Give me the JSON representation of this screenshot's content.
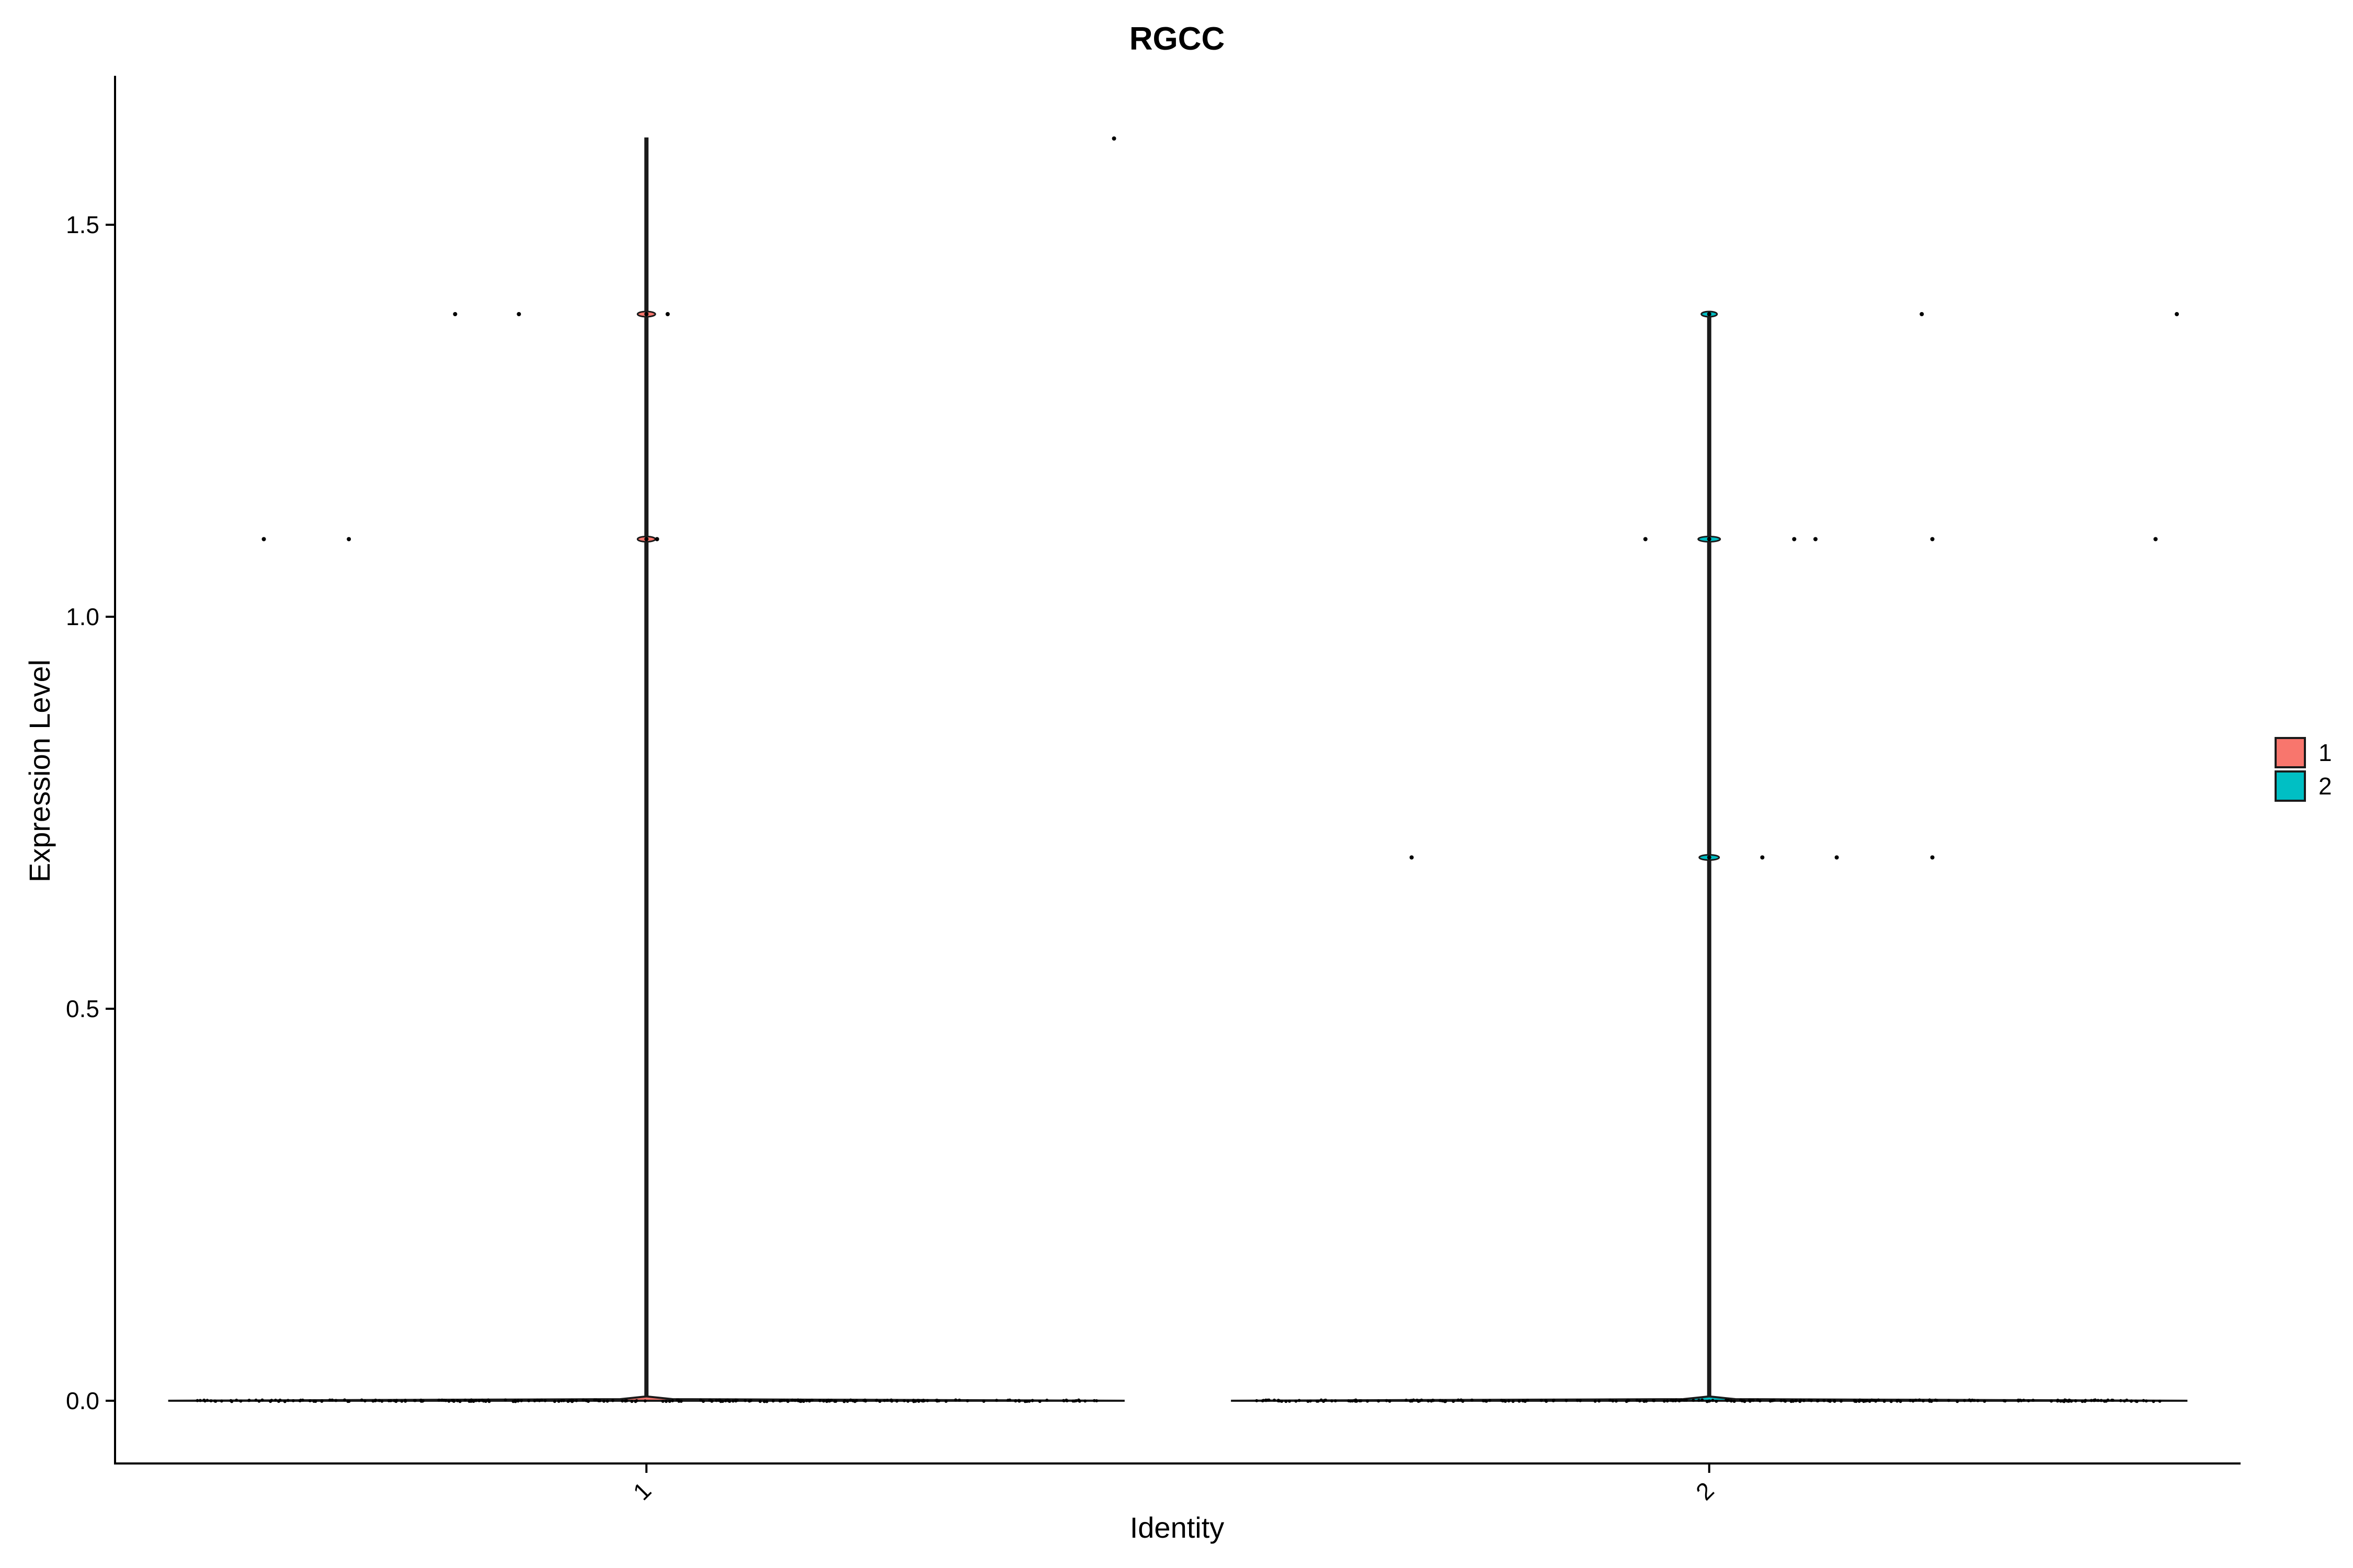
{
  "chart_data": {
    "type": "violin",
    "title": "RGCC",
    "xlabel": "Identity",
    "ylabel": "Expression Level",
    "categories": [
      "1",
      "2"
    ],
    "ylim": [
      -0.08,
      1.69
    ],
    "yticks": [
      0.0,
      0.5,
      1.0,
      1.5
    ],
    "ytick_labels": [
      "0.0",
      "0.5",
      "1.0",
      "1.5"
    ],
    "grid": false,
    "legend": {
      "placement": "right",
      "entries": [
        {
          "label": "1",
          "color": "#F8766D"
        },
        {
          "label": "2",
          "color": "#00BFC4"
        }
      ]
    },
    "series": [
      {
        "name": "1",
        "category": "1",
        "color": "#F8766D",
        "violin_max": 1.61,
        "nonzero_points": [
          {
            "x_jitter": 0.44,
            "y": 1.61
          },
          {
            "x_jitter": -0.18,
            "y": 1.386
          },
          {
            "x_jitter": -0.12,
            "y": 1.386
          },
          {
            "x_jitter": 0.0,
            "y": 1.386
          },
          {
            "x_jitter": 0.02,
            "y": 1.386
          },
          {
            "x_jitter": -0.36,
            "y": 1.099
          },
          {
            "x_jitter": -0.28,
            "y": 1.099
          },
          {
            "x_jitter": 0.0,
            "y": 1.099
          },
          {
            "x_jitter": 0.01,
            "y": 1.099
          }
        ]
      },
      {
        "name": "2",
        "category": "2",
        "color": "#00BFC4",
        "violin_max": 1.386,
        "nonzero_points": [
          {
            "x_jitter": 0.2,
            "y": 1.386
          },
          {
            "x_jitter": 0.44,
            "y": 1.386
          },
          {
            "x_jitter": 0.0,
            "y": 1.386
          },
          {
            "x_jitter": -0.06,
            "y": 1.099
          },
          {
            "x_jitter": 0.0,
            "y": 1.099
          },
          {
            "x_jitter": 0.08,
            "y": 1.099
          },
          {
            "x_jitter": 0.1,
            "y": 1.099
          },
          {
            "x_jitter": 0.21,
            "y": 1.099
          },
          {
            "x_jitter": 0.42,
            "y": 1.099
          },
          {
            "x_jitter": -0.28,
            "y": 0.693
          },
          {
            "x_jitter": 0.0,
            "y": 0.693
          },
          {
            "x_jitter": 0.05,
            "y": 0.693
          },
          {
            "x_jitter": 0.12,
            "y": 0.693
          },
          {
            "x_jitter": 0.21,
            "y": 0.693
          }
        ]
      }
    ]
  }
}
